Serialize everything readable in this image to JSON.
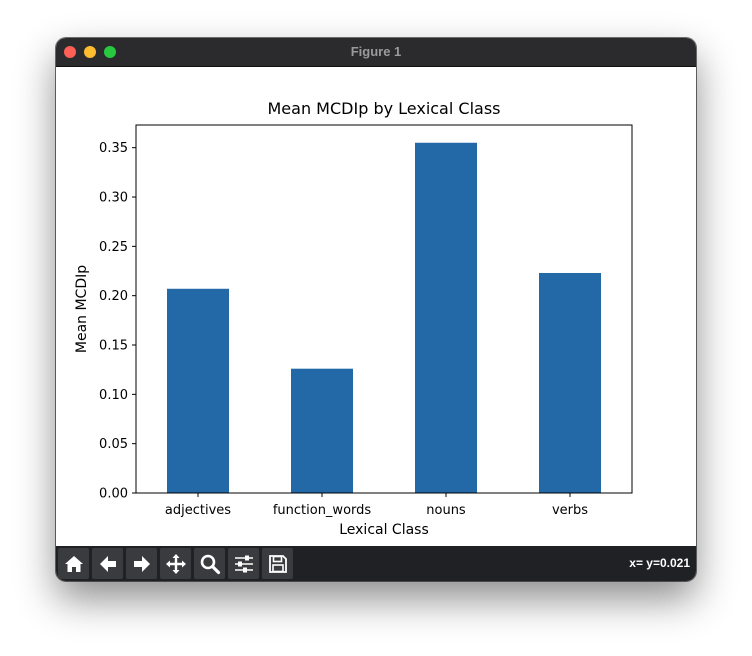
{
  "window": {
    "title": "Figure 1"
  },
  "toolbar": {
    "buttons": [
      {
        "icon": "home-icon"
      },
      {
        "icon": "back-arrow-icon"
      },
      {
        "icon": "forward-arrow-icon"
      },
      {
        "icon": "pan-move-icon"
      },
      {
        "icon": "zoom-magnifier-icon"
      },
      {
        "icon": "configure-subplots-icon"
      },
      {
        "icon": "save-floppy-icon"
      }
    ],
    "coords": "x= y=0.021"
  },
  "chart_data": {
    "type": "bar",
    "title": "Mean MCDIp by Lexical Class",
    "xlabel": "Lexical Class",
    "ylabel": "Mean MCDIp",
    "categories": [
      "adjectives",
      "function_words",
      "nouns",
      "verbs"
    ],
    "values": [
      0.207,
      0.126,
      0.355,
      0.223
    ],
    "ylim": [
      0,
      0.373
    ],
    "yticks": [
      "0.00",
      "0.05",
      "0.10",
      "0.15",
      "0.20",
      "0.25",
      "0.30",
      "0.35"
    ],
    "ytick_values": [
      0,
      0.05,
      0.1,
      0.15,
      0.2,
      0.25,
      0.3,
      0.35
    ],
    "bar_color": "#2369a7",
    "grid": false,
    "legend": "none"
  }
}
